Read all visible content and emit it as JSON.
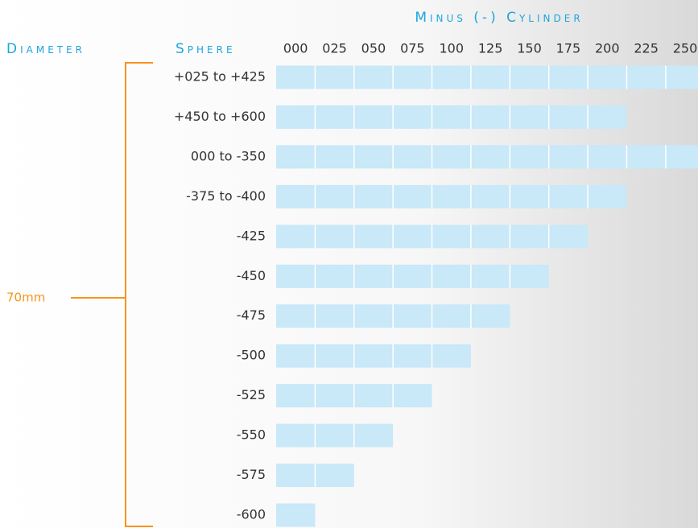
{
  "chart_data": {
    "type": "cylinder-grid",
    "title": "Minus (-) Cylinder",
    "y_label": "Sphere",
    "group_label": "Diameter",
    "group": "70mm",
    "color": "#c9e8f8",
    "categories": [
      "+025 to +425",
      "+450 to +600",
      "000 to -350",
      "-375 to -400",
      "-425",
      "-450",
      "-475",
      "-500",
      "-525",
      "-550",
      "-575",
      "-600"
    ],
    "values": [
      250,
      200,
      250,
      200,
      175,
      150,
      125,
      100,
      75,
      50,
      25,
      0
    ],
    "xlim": [
      0,
      250
    ],
    "xticks": [
      {
        "value": 0,
        "label": "000"
      },
      {
        "value": 25,
        "label": "025"
      },
      {
        "value": 50,
        "label": "050"
      },
      {
        "value": 75,
        "label": "075"
      },
      100,
      125,
      150,
      175,
      200,
      225,
      250
    ]
  }
}
